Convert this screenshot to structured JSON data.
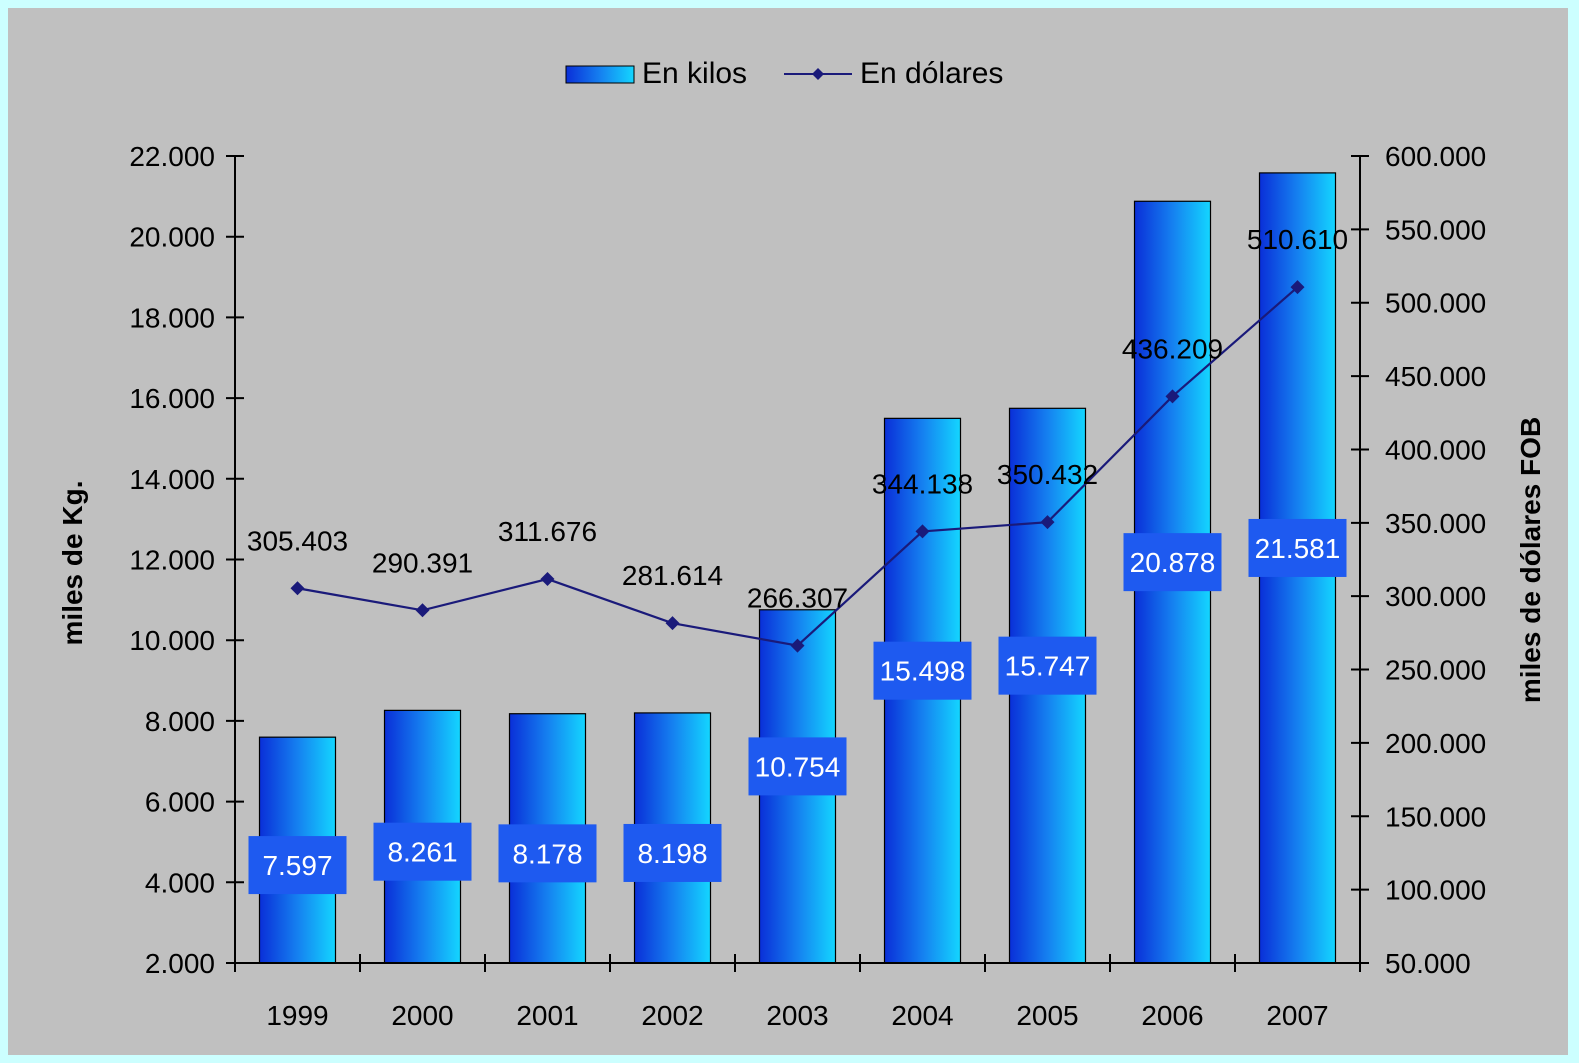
{
  "chart_data": {
    "type": "bar",
    "categories": [
      "1999",
      "2000",
      "2001",
      "2002",
      "2003",
      "2004",
      "2005",
      "2006",
      "2007"
    ],
    "series": [
      {
        "name": "En kilos",
        "type": "bar",
        "axis": "left",
        "values": [
          7597,
          8261,
          8178,
          8198,
          10754,
          15498,
          15747,
          20878,
          21581
        ],
        "labels": [
          "7.597",
          "8.261",
          "8.178",
          "8.198",
          "10.754",
          "15.498",
          "15.747",
          "20.878",
          "21.581"
        ]
      },
      {
        "name": "En dólares",
        "type": "line",
        "axis": "right",
        "values": [
          305403,
          290391,
          311676,
          281614,
          266307,
          344138,
          350432,
          436209,
          510610
        ],
        "labels": [
          "305.403",
          "290.391",
          "311.676",
          "281.614",
          "266.307",
          "344.138",
          "350.432",
          "436.209",
          "510.610"
        ]
      }
    ],
    "ylabel": "miles de Kg.",
    "y2label": "miles de dólares FOB",
    "ylim": [
      2000,
      22000
    ],
    "y2lim": [
      50000,
      600000
    ],
    "yticks": [
      "2.000",
      "4.000",
      "6.000",
      "8.000",
      "10.000",
      "12.000",
      "14.000",
      "16.000",
      "18.000",
      "20.000",
      "22.000"
    ],
    "y2ticks": [
      "50.000",
      "100.000",
      "150.000",
      "200.000",
      "250.000",
      "300.000",
      "350.000",
      "400.000",
      "450.000",
      "500.000",
      "550.000",
      "600.000"
    ],
    "grid": false,
    "legend": "top-center",
    "colors": {
      "page_background": "#ccffff",
      "plot_background": "#c0c0c0",
      "bar_dark": "#0a2fd8",
      "bar_light": "#14d6ff",
      "line": "#1a1a7a"
    }
  }
}
